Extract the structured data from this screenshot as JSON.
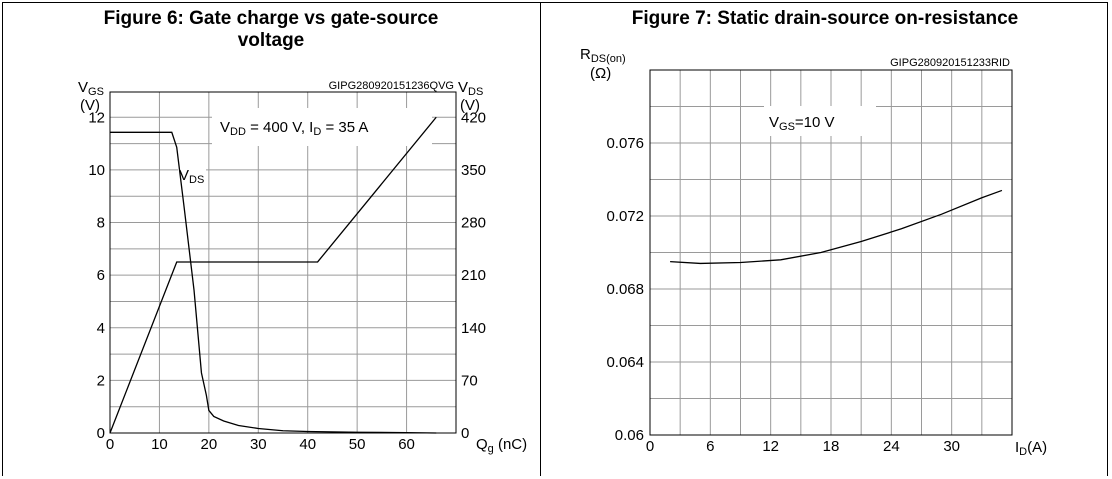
{
  "chart_data": [
    {
      "type": "line",
      "title": "Figure 6: Gate charge vs gate-source voltage",
      "title_line1": "Figure 6: Gate charge vs gate-source",
      "title_line2": "voltage",
      "figure_code": "GIPG280920151236QVG",
      "xlabel": "Q",
      "xlabel_sub": "g",
      "xlabel_unit": " (nC)",
      "ylabel": "V",
      "ylabel_sub": "GS",
      "ylabel_unit": "(V)",
      "y2label": "V",
      "y2label_sub": "DS",
      "y2label_unit": "(V)",
      "xlim": [
        0,
        70
      ],
      "ylim": [
        0,
        12.96
      ],
      "y2lim": [
        0,
        453.6
      ],
      "x_ticks": [
        "0",
        "10",
        "20",
        "30",
        "40",
        "50",
        "60"
      ],
      "y_ticks": [
        "0",
        "2",
        "4",
        "6",
        "8",
        "10",
        "12"
      ],
      "y2_ticks": [
        "0",
        "70",
        "140",
        "210",
        "280",
        "350",
        "420"
      ],
      "grid": true,
      "annotation": {
        "t1": "V",
        "t1_sub": "DD",
        "t2": " = 400 V, I",
        "t2_sub": "D",
        "t3": " = 35 A"
      },
      "series_label": {
        "text": "V",
        "sub": "DS"
      },
      "series": [
        {
          "axis": "left",
          "x": [
            0,
            13.5,
            42,
            66
          ],
          "y": [
            0,
            6.5,
            6.5,
            12
          ]
        },
        {
          "axis": "right",
          "x": [
            0,
            12.5,
            13.5,
            15,
            17,
            18.5,
            19.5,
            20,
            21,
            23,
            26,
            30,
            35,
            40,
            50,
            60,
            66
          ],
          "y": [
            400,
            400,
            380,
            300,
            190,
            80,
            50,
            30,
            22,
            16,
            10,
            6,
            3,
            2,
            1,
            0.5,
            0
          ]
        }
      ]
    },
    {
      "type": "line",
      "title": "Figure 7: Static drain-source on-resistance",
      "figure_code": "GIPG280920151233RID",
      "xlabel": "I",
      "xlabel_sub": "D",
      "xlabel_unit": "(A)",
      "ylabel": "R",
      "ylabel_sub": "DS(on)",
      "ylabel_unit": "(Ω)",
      "xlim": [
        0,
        36
      ],
      "ylim": [
        0.06,
        0.08
      ],
      "x_ticks": [
        "0",
        "6",
        "12",
        "18",
        "24",
        "30"
      ],
      "y_ticks": [
        "0.06",
        "0.064",
        "0.068",
        "0.072",
        "0.076"
      ],
      "grid": true,
      "annotation": {
        "t1": "V",
        "t1_sub": "GS",
        "t2": "=10 V"
      },
      "series": [
        {
          "x": [
            2,
            5,
            9,
            13,
            17,
            21,
            25,
            29,
            33,
            35
          ],
          "y": [
            0.0695,
            0.0694,
            0.06945,
            0.0696,
            0.07,
            0.0706,
            0.0713,
            0.0721,
            0.073,
            0.0734
          ]
        }
      ]
    }
  ]
}
